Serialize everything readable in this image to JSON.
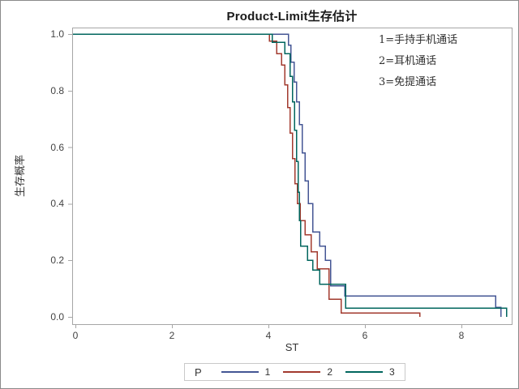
{
  "title": "Product-Limit生存估计",
  "annotations": [
    "1=手持手机通话",
    "2=耳机通话",
    "3=免提通话"
  ],
  "x_axis": {
    "label": "ST",
    "tick_labels": [
      "0",
      "2",
      "4",
      "6",
      "8"
    ],
    "tick_values": [
      0,
      2,
      4,
      6,
      8
    ]
  },
  "y_axis": {
    "label": "生存概率",
    "tick_labels": [
      "1.0",
      "0.8",
      "0.6",
      "0.4",
      "0.2",
      "0.0"
    ],
    "tick_values": [
      1.0,
      0.8,
      0.6,
      0.4,
      0.2,
      0.0
    ]
  },
  "legend": {
    "title": "P",
    "entries": [
      {
        "label": "1",
        "color": "#445694"
      },
      {
        "label": "2",
        "color": "#A23A2E"
      },
      {
        "label": "3",
        "color": "#01665E"
      }
    ]
  },
  "frame_color": "#a6a6a6",
  "chart_data": {
    "type": "line",
    "subtype": "step-survival",
    "title": "Product-Limit生存估计",
    "xlabel": "ST",
    "ylabel": "生存概率",
    "xlim": [
      0,
      9.05
    ],
    "ylim": [
      0.0,
      1.0
    ],
    "x_ticks": [
      0,
      2,
      4,
      6,
      8
    ],
    "y_ticks": [
      0.0,
      0.2,
      0.4,
      0.6,
      0.8,
      1.0
    ],
    "grid": false,
    "legend_position": "bottom",
    "series": [
      {
        "name": "1",
        "color": "#445694",
        "step_points": [
          [
            0,
            1.0
          ],
          [
            4.42,
            0.96
          ],
          [
            4.47,
            0.9
          ],
          [
            4.53,
            0.83
          ],
          [
            4.58,
            0.76
          ],
          [
            4.64,
            0.68
          ],
          [
            4.7,
            0.58
          ],
          [
            4.76,
            0.48
          ],
          [
            4.83,
            0.4
          ],
          [
            4.92,
            0.3
          ],
          [
            5.06,
            0.25
          ],
          [
            5.18,
            0.2
          ],
          [
            5.29,
            0.11
          ],
          [
            5.58,
            0.074
          ],
          [
            8.71,
            0.034
          ],
          [
            8.82,
            0.0
          ]
        ]
      },
      {
        "name": "2",
        "color": "#A23A2E",
        "step_points": [
          [
            0,
            1.0
          ],
          [
            4.02,
            0.975
          ],
          [
            4.17,
            0.93
          ],
          [
            4.27,
            0.89
          ],
          [
            4.34,
            0.82
          ],
          [
            4.4,
            0.74
          ],
          [
            4.45,
            0.65
          ],
          [
            4.5,
            0.56
          ],
          [
            4.55,
            0.47
          ],
          [
            4.6,
            0.4
          ],
          [
            4.66,
            0.34
          ],
          [
            4.76,
            0.29
          ],
          [
            4.89,
            0.23
          ],
          [
            5.01,
            0.17
          ],
          [
            5.26,
            0.063
          ],
          [
            5.51,
            0.014
          ],
          [
            7.14,
            0.0
          ]
        ]
      },
      {
        "name": "3",
        "color": "#01665E",
        "step_points": [
          [
            0,
            1.0
          ],
          [
            4.08,
            0.97
          ],
          [
            4.34,
            0.93
          ],
          [
            4.45,
            0.85
          ],
          [
            4.5,
            0.76
          ],
          [
            4.54,
            0.66
          ],
          [
            4.58,
            0.55
          ],
          [
            4.62,
            0.44
          ],
          [
            4.64,
            0.34
          ],
          [
            4.67,
            0.25
          ],
          [
            4.81,
            0.2
          ],
          [
            4.92,
            0.166
          ],
          [
            5.06,
            0.115
          ],
          [
            5.6,
            0.031
          ],
          [
            8.94,
            0.0
          ]
        ]
      }
    ]
  }
}
